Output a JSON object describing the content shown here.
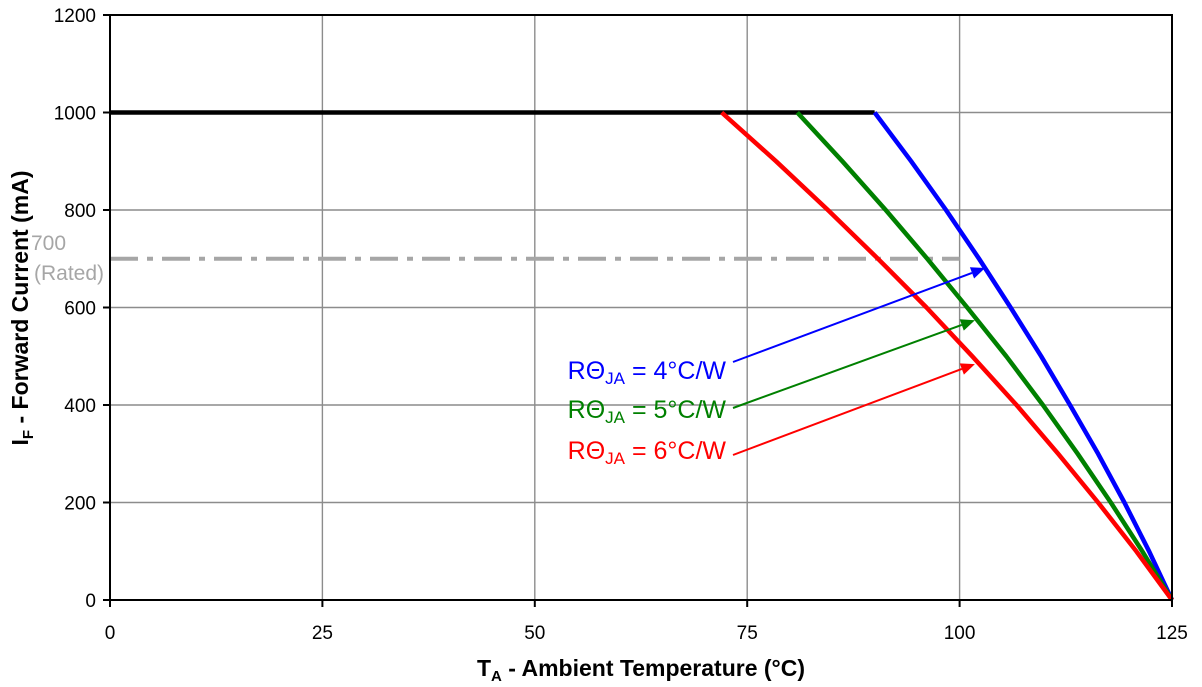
{
  "chart_data": {
    "type": "line",
    "xlabel": {
      "main": "T",
      "sub": "A",
      "rest": " - Ambient Temperature (°C)"
    },
    "ylabel": {
      "main": "I",
      "sub": "F",
      "rest": " - Forward Current (mA)"
    },
    "xlim": [
      0,
      125
    ],
    "ylim": [
      0,
      1200
    ],
    "xticks": [
      0,
      25,
      50,
      75,
      100,
      125
    ],
    "yticks": [
      0,
      200,
      400,
      600,
      800,
      1000,
      1200
    ],
    "grid": true,
    "series": [
      {
        "color": "#000000",
        "x": [
          0,
          90
        ],
        "y": [
          1000,
          1000
        ]
      },
      {
        "color": "#0000FF",
        "x": [
          90.0,
          94.3,
          98.4,
          102.3,
          106.0,
          109.6,
          113.0,
          116.3,
          119.4,
          122.3,
          125.0
        ],
        "y": [
          1000,
          900,
          800,
          700,
          600,
          500,
          400,
          300,
          200,
          100,
          0
        ]
      },
      {
        "color": "#008000",
        "x": [
          80.9,
          86.2,
          91.3,
          96.2,
          100.9,
          105.5,
          109.8,
          113.9,
          117.8,
          121.5,
          125.0
        ],
        "y": [
          1000,
          900,
          800,
          700,
          600,
          500,
          400,
          300,
          200,
          100,
          0
        ]
      },
      {
        "color": "#FF0000",
        "x": [
          72.0,
          78.4,
          84.5,
          90.4,
          96.1,
          101.5,
          106.7,
          111.6,
          116.3,
          120.8,
          125.0
        ],
        "y": [
          1000,
          900,
          800,
          700,
          600,
          500,
          400,
          300,
          200,
          100,
          0
        ]
      }
    ],
    "reference_line": {
      "y": 700,
      "x_range": [
        0,
        100
      ],
      "color": "#A6A6A6",
      "label": "700",
      "sublabel": "(Rated)"
    },
    "annotations": [
      {
        "text_main": "RΘ",
        "text_sub": "JA",
        "text_rest": " = 4°C/W",
        "color": "#0000FF"
      },
      {
        "text_main": "RΘ",
        "text_sub": "JA",
        "text_rest": " = 5°C/W",
        "color": "#008000"
      },
      {
        "text_main": "RΘ",
        "text_sub": "JA",
        "text_rest": " = 6°C/W",
        "color": "#FF0000"
      }
    ]
  }
}
